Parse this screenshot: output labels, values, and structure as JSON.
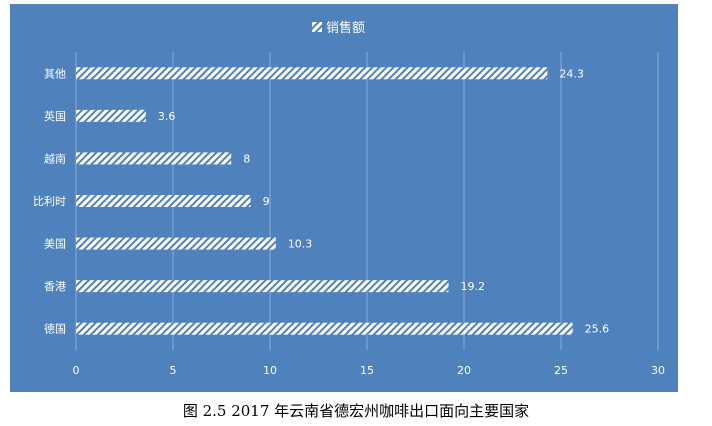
{
  "caption": "图 2.5 2017 年云南省德宏州咖啡出口面向主要国家",
  "colors": {
    "plot_background": "#4f81bd",
    "bar_fill": "#ffffff",
    "bar_hatch": "#4f81bd",
    "gridline": "#8eaad6",
    "text": "#ffffff",
    "caption_text": "#000000"
  },
  "chart_data": {
    "type": "bar",
    "orientation": "horizontal",
    "categories": [
      "其他",
      "英国",
      "越南",
      "比利时",
      "美国",
      "香港",
      "德国"
    ],
    "series": [
      {
        "name": "销售额",
        "values": [
          24.3,
          3.6,
          8,
          9,
          10.3,
          19.2,
          25.6
        ]
      }
    ],
    "data_labels": [
      "24.3",
      "3.6",
      "8",
      "9",
      "10.3",
      "19.2",
      "25.6"
    ],
    "x_ticks": [
      "0",
      "5",
      "10",
      "15",
      "20",
      "25",
      "30"
    ],
    "xlim": [
      0,
      30
    ],
    "grid": true,
    "legend_position": "top",
    "bar_pattern": "diagonal-hatch"
  }
}
